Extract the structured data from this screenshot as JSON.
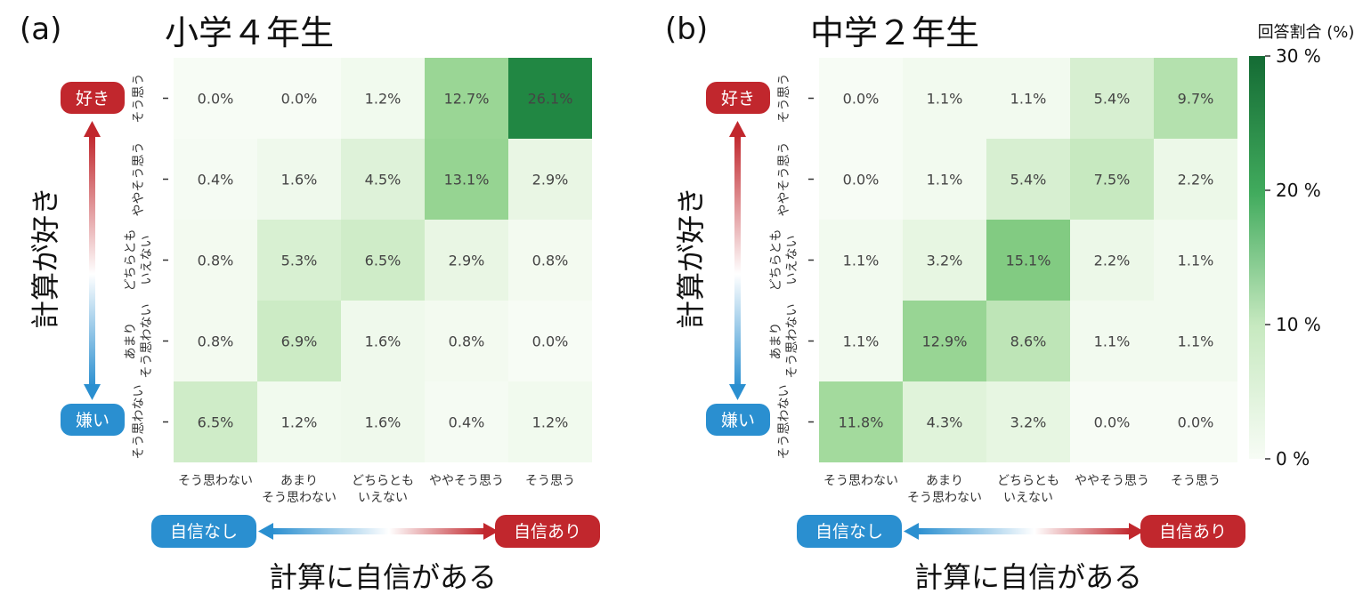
{
  "colors": {
    "like_red": "#c1272d",
    "dislike_blue": "#2a8fd0",
    "scale_low": "#f7fcf5",
    "scale_high": "#146b34"
  },
  "colorbar": {
    "title": "回答割合 (%)",
    "ticks": [
      "30 %",
      "20 %",
      "10 %",
      "0 %"
    ],
    "range": [
      0,
      30
    ]
  },
  "chart_data": [
    {
      "type": "heatmap",
      "panel_label": "(a)",
      "title": "小学４年生",
      "xlabel": "計算に自信がある",
      "ylabel": "計算が好き",
      "x_low_badge": "自信なし",
      "x_high_badge": "自信あり",
      "y_high_badge": "好き",
      "y_low_badge": "嫌い",
      "x_categories": [
        [
          "そう思わない"
        ],
        [
          "あまり",
          "そう思わない"
        ],
        [
          "どちらとも",
          "いえない"
        ],
        [
          "ややそう思う"
        ],
        [
          "そう思う"
        ]
      ],
      "y_categories": [
        [
          "そう思う"
        ],
        [
          "ややそう思う"
        ],
        [
          "どちらとも",
          "いえない"
        ],
        [
          "あまり",
          "そう思わない"
        ],
        [
          "そう思わない"
        ]
      ],
      "values": [
        [
          0.0,
          0.0,
          1.2,
          12.7,
          26.1
        ],
        [
          0.4,
          1.6,
          4.5,
          13.1,
          2.9
        ],
        [
          0.8,
          5.3,
          6.5,
          2.9,
          0.8
        ],
        [
          0.8,
          6.9,
          1.6,
          0.8,
          0.0
        ],
        [
          6.5,
          1.2,
          1.6,
          0.4,
          1.2
        ]
      ],
      "value_labels": [
        [
          "0.0%",
          "0.0%",
          "1.2%",
          "12.7%",
          "26.1%"
        ],
        [
          "0.4%",
          "1.6%",
          "4.5%",
          "13.1%",
          "2.9%"
        ],
        [
          "0.8%",
          "5.3%",
          "6.5%",
          "2.9%",
          "0.8%"
        ],
        [
          "0.8%",
          "6.9%",
          "1.6%",
          "0.8%",
          "0.0%"
        ],
        [
          "6.5%",
          "1.2%",
          "1.6%",
          "0.4%",
          "1.2%"
        ]
      ]
    },
    {
      "type": "heatmap",
      "panel_label": "(b)",
      "title": "中学２年生",
      "xlabel": "計算に自信がある",
      "ylabel": "計算が好き",
      "x_low_badge": "自信なし",
      "x_high_badge": "自信あり",
      "y_high_badge": "好き",
      "y_low_badge": "嫌い",
      "x_categories": [
        [
          "そう思わない"
        ],
        [
          "あまり",
          "そう思わない"
        ],
        [
          "どちらとも",
          "いえない"
        ],
        [
          "ややそう思う"
        ],
        [
          "そう思う"
        ]
      ],
      "y_categories": [
        [
          "そう思う"
        ],
        [
          "ややそう思う"
        ],
        [
          "どちらとも",
          "いえない"
        ],
        [
          "あまり",
          "そう思わない"
        ],
        [
          "そう思わない"
        ]
      ],
      "values": [
        [
          0.0,
          1.1,
          1.1,
          5.4,
          9.7
        ],
        [
          0.0,
          1.1,
          5.4,
          7.5,
          2.2
        ],
        [
          1.1,
          3.2,
          15.1,
          2.2,
          1.1
        ],
        [
          1.1,
          12.9,
          8.6,
          1.1,
          1.1
        ],
        [
          11.8,
          4.3,
          3.2,
          0.0,
          0.0
        ]
      ],
      "value_labels": [
        [
          "0.0%",
          "1.1%",
          "1.1%",
          "5.4%",
          "9.7%"
        ],
        [
          "0.0%",
          "1.1%",
          "5.4%",
          "7.5%",
          "2.2%"
        ],
        [
          "1.1%",
          "3.2%",
          "15.1%",
          "2.2%",
          "1.1%"
        ],
        [
          "1.1%",
          "12.9%",
          "8.6%",
          "1.1%",
          "1.1%"
        ],
        [
          "11.8%",
          "4.3%",
          "3.2%",
          "0.0%",
          "0.0%"
        ]
      ]
    }
  ]
}
